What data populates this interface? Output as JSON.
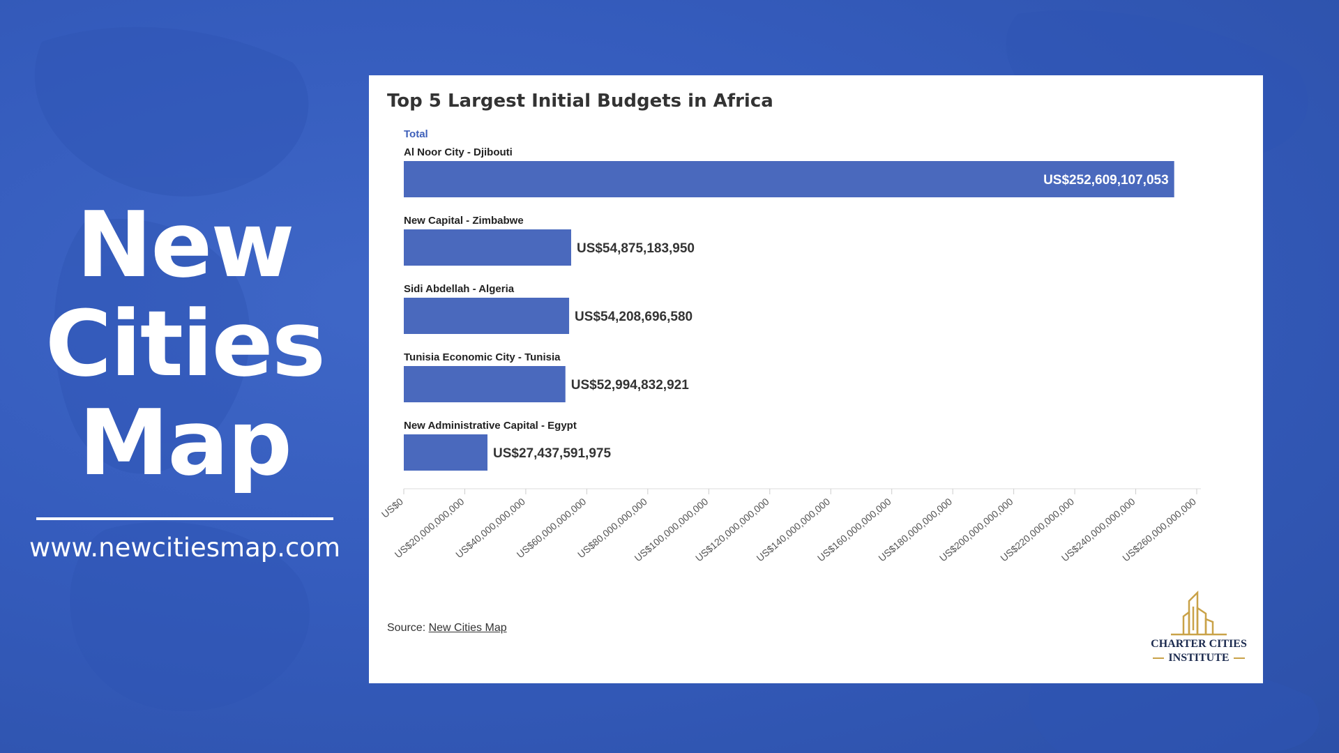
{
  "brand": {
    "title_lines": [
      "New",
      "Cities",
      "Map"
    ],
    "url": "www.newcitiesmap.com"
  },
  "chart_data": {
    "type": "bar",
    "orientation": "horizontal",
    "title": "Top 5 Largest Initial Budgets in Africa",
    "legend": "Total",
    "categories": [
      "Al Noor City - Djibouti",
      "New Capital - Zimbabwe",
      "Sidi Abdellah - Algeria",
      "Tunisia Economic City - Tunisia",
      "New Administrative Capital - Egypt"
    ],
    "values": [
      252609107053,
      54875183950,
      54208696580,
      52994832921,
      27437591975
    ],
    "value_labels": [
      "US$252,609,107,053",
      "US$54,875,183,950",
      "US$54,208,696,580",
      "US$52,994,832,921",
      "US$27,437,591,975"
    ],
    "xlim": [
      0,
      260000000000
    ],
    "x_ticks": [
      0,
      20000000000,
      40000000000,
      60000000000,
      80000000000,
      100000000000,
      120000000000,
      140000000000,
      160000000000,
      180000000000,
      200000000000,
      220000000000,
      240000000000,
      260000000000
    ],
    "x_tick_labels": [
      "US$0",
      "US$20,000,000,000",
      "US$40,000,000,000",
      "US$60,000,000,000",
      "US$80,000,000,000",
      "US$100,000,000,000",
      "US$120,000,000,000",
      "US$140,000,000,000",
      "US$160,000,000,000",
      "US$180,000,000,000",
      "US$200,000,000,000",
      "US$220,000,000,000",
      "US$240,000,000,000",
      "US$260,000,000,000"
    ],
    "bar_color": "#4a69bd"
  },
  "source": {
    "prefix": "Source: ",
    "link_text": "New Cities Map"
  },
  "logo": {
    "line1": "CHARTER CITIES",
    "line2": "INSTITUTE"
  },
  "colors": {
    "background": "#3a60c2",
    "accent": "#4a69bd",
    "logo_gold": "#c9a248"
  }
}
